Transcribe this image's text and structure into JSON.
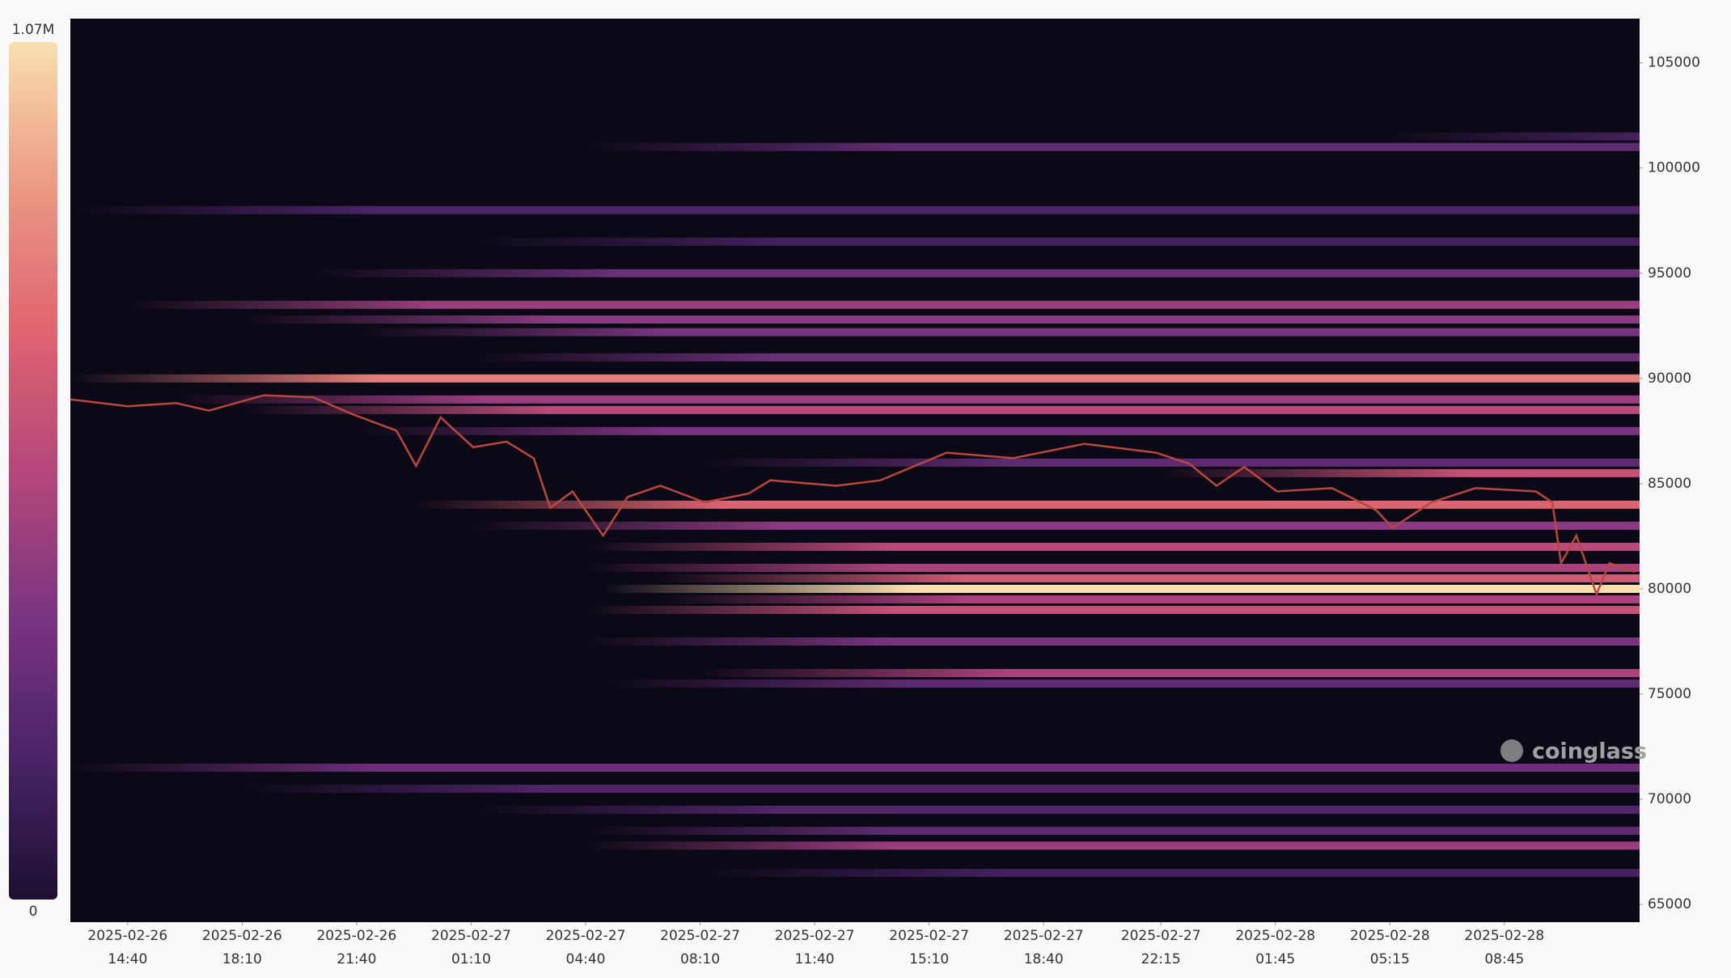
{
  "chart_data": {
    "type": "heatmap",
    "watermark": "coinglass",
    "xlim": [
      "2025-02-26 12:55",
      "2025-02-28 12:53"
    ],
    "xticks": [
      "2025-02-26 14:40",
      "2025-02-26 18:10",
      "2025-02-26 21:40",
      "2025-02-27 01:10",
      "2025-02-27 04:40",
      "2025-02-27 08:10",
      "2025-02-27 11:40",
      "2025-02-27 15:10",
      "2025-02-27 18:40",
      "2025-02-27 22:15",
      "2025-02-28 01:45",
      "2025-02-28 05:15",
      "2025-02-28 08:45"
    ],
    "ylim": [
      64160,
      107100
    ],
    "yticks": [
      65000,
      70000,
      75000,
      80000,
      85000,
      90000,
      95000,
      100000,
      105000
    ],
    "colorbar": {
      "zlim": [
        0,
        1070000
      ],
      "ticks": [
        0,
        {
          "value": 1070000,
          "label": "1.07M"
        }
      ],
      "colors": [
        "#1c1033",
        "#4a2466",
        "#7b3580",
        "#b5477a",
        "#df6570",
        "#eb9a85",
        "#f8dfb0"
      ]
    },
    "background": "#0c0916",
    "levels": {
      "prices": [
        101500,
        101000,
        98000,
        96500,
        95000,
        93500,
        92800,
        92200,
        91000,
        90000,
        89000,
        88500,
        87500,
        86000,
        85500,
        84000,
        83000,
        82000,
        81000,
        80500,
        80000,
        79500,
        79000,
        77500,
        76000,
        75500,
        71500,
        70500,
        69500,
        68500,
        67800,
        66500
      ],
      "starts": [
        "2025-02-28 05:00",
        "2025-02-27 04:40",
        "2025-02-26 12:55",
        "2025-02-27 01:10",
        "2025-02-26 20:21",
        "2025-02-26 14:40",
        "2025-02-26 18:10",
        "2025-02-26 21:40",
        "2025-02-27 01:10",
        "2025-02-26 12:55",
        "2025-02-26 16:09",
        "2025-02-26 18:10",
        "2025-02-26 21:40",
        "2025-02-27 08:10",
        "2025-02-27 22:15",
        "2025-02-26 23:29",
        "2025-02-27 01:10",
        "2025-02-27 04:40",
        "2025-02-27 04:40",
        "2025-02-27 06:57",
        "2025-02-27 05:12",
        "2025-02-27 06:57",
        "2025-02-27 04:40",
        "2025-02-27 04:40",
        "2025-02-27 08:10",
        "2025-02-27 05:12",
        "2025-02-26 12:55",
        "2025-02-26 18:10",
        "2025-02-27 01:10",
        "2025-02-27 04:40",
        "2025-02-27 04:40",
        "2025-02-27 08:10"
      ],
      "values": [
        200000,
        250000,
        180000,
        150000,
        300000,
        450000,
        400000,
        350000,
        300000,
        800000,
        450000,
        550000,
        350000,
        250000,
        600000,
        700000,
        400000,
        550000,
        500000,
        650000,
        1070000,
        500000,
        600000,
        350000,
        500000,
        250000,
        300000,
        200000,
        200000,
        250000,
        450000,
        150000
      ]
    },
    "price": {
      "color": "#b9473d",
      "x": [
        "2025-02-26 12:55",
        "2025-02-26 14:40",
        "2025-02-26 16:09",
        "2025-02-26 17:09",
        "2025-02-26 18:50",
        "2025-02-26 20:21",
        "2025-02-26 21:32",
        "2025-02-26 22:53",
        "2025-02-26 23:29",
        "2025-02-27 00:14",
        "2025-02-27 01:14",
        "2025-02-27 02:15",
        "2025-02-27 03:05",
        "2025-02-27 03:35",
        "2025-02-27 04:16",
        "2025-02-27 05:12",
        "2025-02-27 05:57",
        "2025-02-27 06:57",
        "2025-02-27 08:18",
        "2025-02-27 09:39",
        "2025-02-27 10:19",
        "2025-02-27 12:20",
        "2025-02-27 13:41",
        "2025-02-27 15:42",
        "2025-02-27 17:44",
        "2025-02-27 19:55",
        "2025-02-27 22:06",
        "2025-02-27 23:07",
        "2025-02-27 23:57",
        "2025-02-28 00:48",
        "2025-02-28 01:48",
        "2025-02-28 03:29",
        "2025-02-28 04:50",
        "2025-02-28 05:20",
        "2025-02-28 06:31",
        "2025-02-28 07:52",
        "2025-02-28 09:43",
        "2025-02-28 10:13",
        "2025-02-28 10:29",
        "2025-02-28 10:57",
        "2025-02-28 11:34",
        "2025-02-28 11:58",
        "2025-02-28 12:45"
      ],
      "values": [
        89000,
        88680,
        88830,
        88470,
        89200,
        89100,
        88300,
        87520,
        85840,
        88150,
        86730,
        87000,
        86200,
        83850,
        84630,
        82530,
        84370,
        84900,
        84110,
        84530,
        85160,
        84900,
        85160,
        86470,
        86210,
        86890,
        86470,
        85950,
        84900,
        85790,
        84630,
        84790,
        83740,
        82900,
        84110,
        84790,
        84630,
        84110,
        81220,
        82530,
        79750,
        81220,
        80800
      ]
    }
  }
}
